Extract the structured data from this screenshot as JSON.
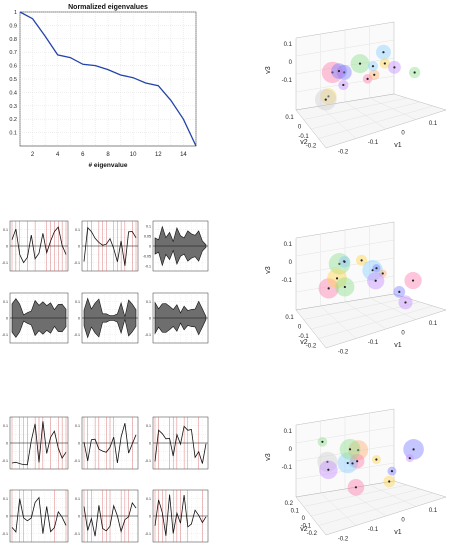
{
  "chart_data": [
    {
      "type": "line",
      "title": "Normalized eigenvalues",
      "xlabel": "# eigenvalue",
      "ylabel": "",
      "xlim": [
        1,
        15
      ],
      "ylim": [
        0,
        1
      ],
      "xticks": [
        "2",
        "4",
        "6",
        "8",
        "10",
        "12",
        "14"
      ],
      "yticks": [
        "0.1",
        "0.2",
        "0.3",
        "0.4",
        "0.5",
        "0.6",
        "0.7",
        "0.8",
        "0.9",
        "1"
      ],
      "grid": true,
      "series": [
        {
          "x": [
            1,
            2,
            3,
            4,
            5,
            6,
            7,
            8,
            9,
            10,
            11,
            12,
            13,
            14,
            15
          ],
          "values": [
            1.0,
            0.95,
            0.82,
            0.68,
            0.66,
            0.61,
            0.6,
            0.57,
            0.53,
            0.51,
            0.47,
            0.45,
            0.34,
            0.2,
            0.0
          ],
          "color": "#2244aa"
        }
      ]
    },
    {
      "type": "scatter",
      "axis_labels": {
        "v1": "v1",
        "v2": "v2",
        "v3": "v3"
      },
      "v1_ticks": [
        "-0.2",
        "-0.1",
        "0",
        "0.1"
      ],
      "v2_ticks": [
        "0.1",
        "0",
        "-0.1",
        "-0.2"
      ],
      "v3_ticks": [
        "0.1",
        "0",
        "-0.1"
      ],
      "grid": true
    },
    {
      "type": "line",
      "panels_tick_labels_top": [
        "0.1",
        "0",
        "-0.1"
      ],
      "panels_tick_labels_side": [
        "0.1",
        "0.05",
        "0",
        "-0.05",
        "-0.1"
      ],
      "grid": true
    },
    {
      "type": "scatter",
      "axis_labels": {
        "v1": "v1",
        "v2": "v2",
        "v3": "v3"
      },
      "v1_ticks": [
        "-0.2",
        "-0.1",
        "0",
        "0.1"
      ],
      "v2_ticks": [
        "0.1",
        "0",
        "-0.1",
        "-0.2"
      ],
      "v3_ticks": [
        "0.1",
        "0",
        "-0.1"
      ]
    },
    {
      "type": "scatter",
      "axis_labels": {
        "v1": "v1",
        "v2": "v2",
        "v3": "v3"
      },
      "v1_ticks": [
        "-0.2",
        "-0.1",
        "0",
        "0.1"
      ],
      "v2_ticks": [
        "0.2",
        "0.1",
        "0",
        "-0.1",
        "-0.2"
      ],
      "v3_ticks": [
        "0.1",
        "0",
        "-0.1"
      ]
    }
  ],
  "colors": {
    "curve": "#2244aa",
    "panel_line": "#111111",
    "panel_fill": "#6e6e6e",
    "panel_vline": "#cc3333",
    "grid": "#d8d8d8",
    "cloud_colors": [
      "#ff7fb0",
      "#7f7fff",
      "#ffd84f",
      "#8fe08f",
      "#8fd0ff",
      "#c890ff",
      "#ffb070",
      "#d0d0d0"
    ]
  }
}
